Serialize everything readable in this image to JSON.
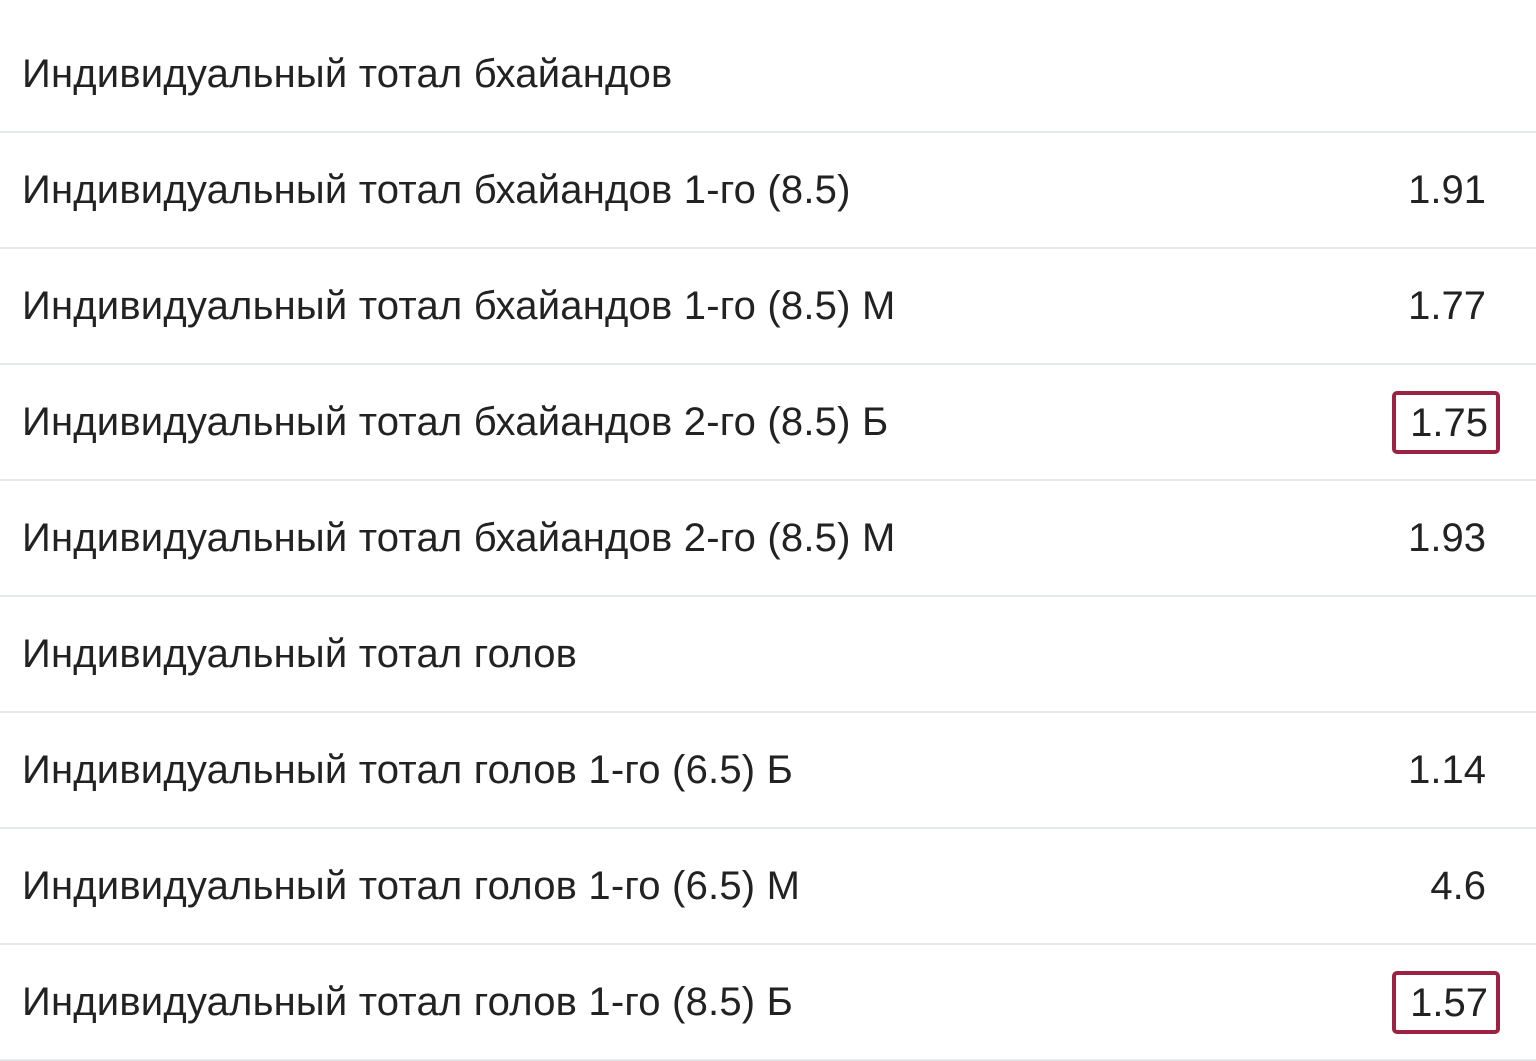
{
  "sections": [
    {
      "title": "Индивидуальный тотал бхайандов",
      "rows": [
        {
          "label": "Индивидуальный тотал бхайандов 1-го (8.5)",
          "odd": "1.91",
          "highlighted": false
        },
        {
          "label": "Индивидуальный тотал бхайандов 1-го (8.5) М",
          "odd": "1.77",
          "highlighted": false
        },
        {
          "label": "Индивидуальный тотал бхайандов 2-го (8.5) Б",
          "odd": "1.75",
          "highlighted": true
        },
        {
          "label": "Индивидуальный тотал бхайандов 2-го (8.5) М",
          "odd": "1.93",
          "highlighted": false
        }
      ]
    },
    {
      "title": "Индивидуальный тотал голов",
      "rows": [
        {
          "label": "Индивидуальный тотал голов 1-го (6.5) Б",
          "odd": "1.14",
          "highlighted": false
        },
        {
          "label": "Индивидуальный тотал голов 1-го (6.5) М",
          "odd": "4.6",
          "highlighted": false
        },
        {
          "label": "Индивидуальный тотал голов 1-го (8.5) Б",
          "odd": "1.57",
          "highlighted": true
        }
      ]
    }
  ],
  "highlight_color": "#9b2243"
}
